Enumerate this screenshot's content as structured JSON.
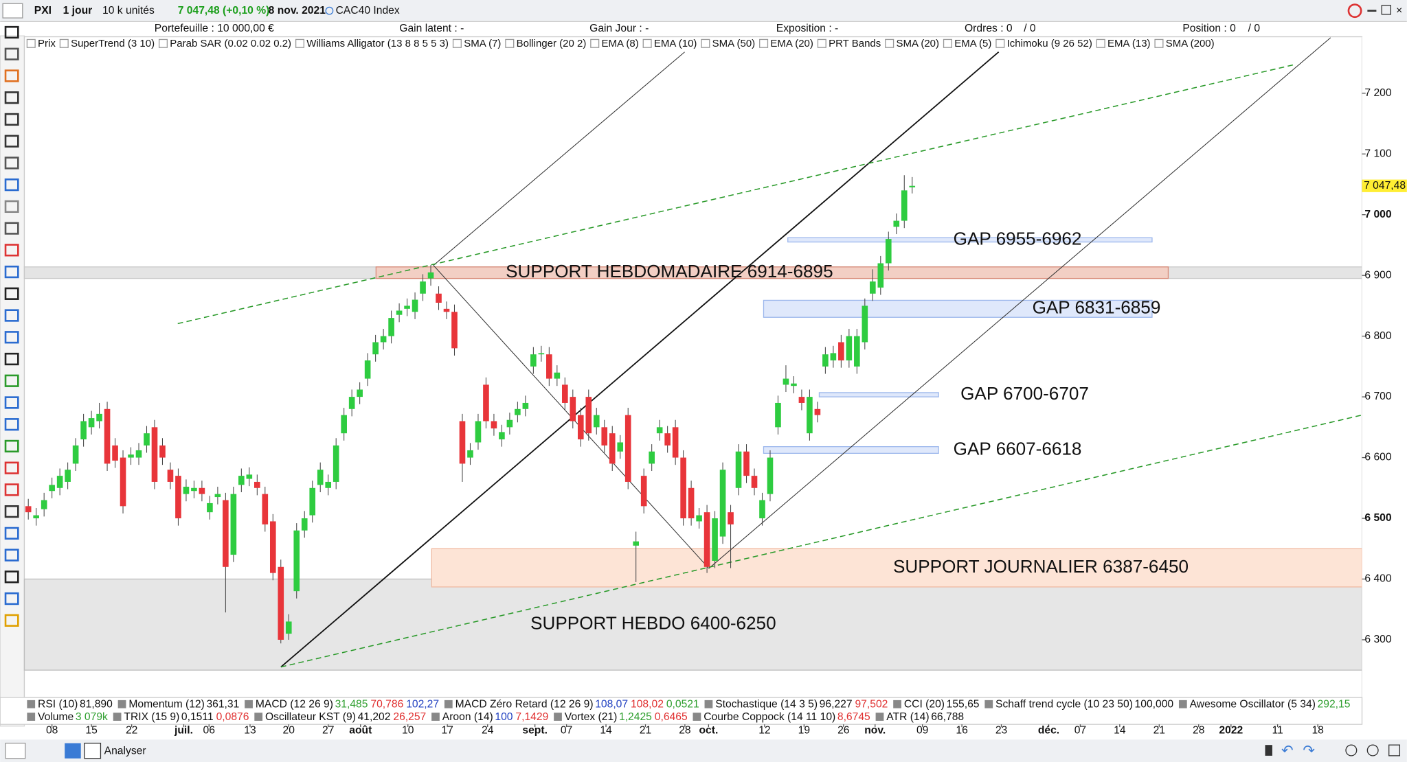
{
  "toolbar": {
    "symbol": "PXI",
    "period": "1 jour",
    "units": "10 k unités",
    "quote": "7 047,48 (+0,10 %)",
    "date": "8 nov. 2021",
    "instrument": "CAC40 Index"
  },
  "header": {
    "portfolio": "Portefeuille : 10 000,00 €",
    "unrealized": "Gain latent : -",
    "day_gain": "Gain Jour : -",
    "exposure": "Exposition : -",
    "orders": "Ordres : 0",
    "orders_2": "/ 0",
    "position": "Position : 0",
    "position_2": "/ 0"
  },
  "overlays": [
    "Prix",
    "SuperTrend (3 10)",
    "Parab SAR (0.02 0.02 0.2)",
    "Williams Alligator (13 8 8 5 5 3)",
    "SMA (7)",
    "Bollinger (20 2)",
    "EMA (8)",
    "EMA (10)",
    "SMA (50)",
    "EMA (20)",
    "PRT Bands",
    "SMA (20)",
    "EMA (5)",
    "Ichimoku (9 26 52)",
    "EMA (13)",
    "SMA (200)"
  ],
  "chart_data": {
    "type": "candlestick",
    "up_color": "#2ecc40",
    "down_color": "#e8353a",
    "open": [
      6520,
      6500,
      6515,
      6545,
      6550,
      6560,
      6590,
      6630,
      6650,
      6660,
      6680,
      6620,
      6600,
      6600,
      6600,
      6620,
      6650,
      6620,
      6580,
      6570,
      6540,
      6545,
      6550,
      6510,
      6535,
      6530,
      6440,
      6555,
      6565,
      6560,
      6540,
      6495,
      6420,
      6310,
      6380,
      6480,
      6505,
      6555,
      6550,
      6560,
      6640,
      6680,
      6700,
      6730,
      6770,
      6790,
      6800,
      6835,
      6845,
      6840,
      6870,
      6895,
      6870,
      6845,
      6840,
      6660,
      6600,
      6625,
      6720,
      6660,
      6630,
      6650,
      6670,
      6680,
      6750,
      6770,
      6770,
      6730,
      6720,
      6700,
      6670,
      6700,
      6650,
      6650,
      6640,
      6610,
      6670,
      6455,
      6570,
      6590,
      6640,
      6640,
      6650,
      6600,
      6550,
      6495,
      6510,
      6430,
      6470,
      6510,
      6550,
      6610,
      6570,
      6500,
      6540,
      6650,
      6720,
      6718,
      6700,
      6640,
      6680,
      6750,
      6760,
      6790,
      6760,
      6750,
      6790,
      6870,
      6880,
      6920,
      6980,
      6990,
      7045
    ],
    "high": [
      6532,
      6517,
      6542,
      6567,
      6582,
      6592,
      6632,
      6672,
      6677,
      6690,
      6692,
      6632,
      6612,
      6617,
      6624,
      6652,
      6662,
      6632,
      6592,
      6582,
      6564,
      6562,
      6562,
      6537,
      6552,
      6542,
      6552,
      6582,
      6584,
      6572,
      6552,
      6507,
      6432,
      6342,
      6492,
      6512,
      6562,
      6592,
      6572,
      6632,
      6682,
      6712,
      6724,
      6772,
      6802,
      6812,
      6842,
      6854,
      6862,
      6872,
      6902,
      6917,
      6882,
      6857,
      6852,
      6672,
      6624,
      6672,
      6732,
      6672,
      6654,
      6674,
      6692,
      6702,
      6782,
      6784,
      6782,
      6752,
      6732,
      6712,
      6682,
      6712,
      6682,
      6662,
      6652,
      6637,
      6682,
      6478,
      6582,
      6622,
      6662,
      6652,
      6662,
      6612,
      6562,
      6517,
      6522,
      6512,
      6592,
      6522,
      6622,
      6622,
      6582,
      6542,
      6612,
      6702,
      6752,
      6734,
      6712,
      6712,
      6692,
      6782,
      6784,
      6802,
      6812,
      6812,
      6862,
      6910,
      6932,
      6972,
      7002,
      7065,
      7062
    ],
    "low": [
      6498,
      6488,
      6503,
      6533,
      6538,
      6548,
      6578,
      6618,
      6638,
      6648,
      6578,
      6583,
      6508,
      6588,
      6588,
      6608,
      6548,
      6588,
      6548,
      6488,
      6528,
      6533,
      6528,
      6498,
      6523,
      6345,
      6428,
      6543,
      6553,
      6538,
      6478,
      6398,
      6294,
      6300,
      6368,
      6468,
      6493,
      6543,
      6538,
      6548,
      6628,
      6668,
      6688,
      6718,
      6758,
      6778,
      6788,
      6823,
      6833,
      6828,
      6858,
      6883,
      6843,
      6828,
      6768,
      6560,
      6588,
      6613,
      6648,
      6636,
      6618,
      6638,
      6658,
      6668,
      6738,
      6758,
      6718,
      6718,
      6678,
      6648,
      6618,
      6628,
      6638,
      6608,
      6578,
      6598,
      6548,
      6395,
      6508,
      6578,
      6628,
      6608,
      6588,
      6488,
      6488,
      6483,
      6410,
      6418,
      6458,
      6418,
      6538,
      6558,
      6538,
      6488,
      6528,
      6638,
      6708,
      6706,
      6678,
      6628,
      6658,
      6738,
      6748,
      6748,
      6748,
      6738,
      6778,
      6858,
      6868,
      6908,
      6968,
      6978,
      7035
    ],
    "close": [
      6510,
      6505,
      6530,
      6555,
      6570,
      6580,
      6620,
      6660,
      6665,
      6672,
      6590,
      6595,
      6520,
      6605,
      6612,
      6640,
      6560,
      6600,
      6560,
      6500,
      6552,
      6550,
      6540,
      6525,
      6540,
      6420,
      6540,
      6570,
      6572,
      6550,
      6490,
      6410,
      6300,
      6330,
      6480,
      6500,
      6550,
      6580,
      6560,
      6620,
      6670,
      6700,
      6712,
      6760,
      6790,
      6800,
      6830,
      6842,
      6850,
      6860,
      6890,
      6905,
      6855,
      6840,
      6780,
      6590,
      6612,
      6660,
      6660,
      6648,
      6642,
      6662,
      6680,
      6690,
      6770,
      6772,
      6730,
      6740,
      6690,
      6660,
      6630,
      6640,
      6670,
      6620,
      6590,
      6625,
      6560,
      6462,
      6520,
      6610,
      6650,
      6620,
      6600,
      6500,
      6500,
      6505,
      6420,
      6500,
      6580,
      6490,
      6610,
      6570,
      6550,
      6530,
      6600,
      6690,
      6730,
      6722,
      6690,
      6700,
      6670,
      6770,
      6772,
      6760,
      6800,
      6800,
      6850,
      6890,
      6920,
      6960,
      6990,
      7040,
      7047.48
    ],
    "xlim": [
      -0.5,
      169
    ],
    "xticks": [
      {
        "value": 3,
        "label": "08"
      },
      {
        "value": 8,
        "label": "15"
      },
      {
        "value": 13.1,
        "label": "22"
      },
      {
        "value": 19.7,
        "label": "juil."
      },
      {
        "value": 22.9,
        "label": "06"
      },
      {
        "value": 28.1,
        "label": "13"
      },
      {
        "value": 33,
        "label": "20"
      },
      {
        "value": 38,
        "label": "27"
      },
      {
        "value": 42.1,
        "label": "août"
      },
      {
        "value": 48.1,
        "label": "10"
      },
      {
        "value": 53.1,
        "label": "17"
      },
      {
        "value": 58.2,
        "label": "24"
      },
      {
        "value": 64.2,
        "label": "sept."
      },
      {
        "value": 68.2,
        "label": "07"
      },
      {
        "value": 73.2,
        "label": "14"
      },
      {
        "value": 78.2,
        "label": "21"
      },
      {
        "value": 83.2,
        "label": "28"
      },
      {
        "value": 86.2,
        "label": "oct."
      },
      {
        "value": 93.3,
        "label": "12"
      },
      {
        "value": 98.3,
        "label": "19"
      },
      {
        "value": 103.3,
        "label": "26"
      },
      {
        "value": 107.3,
        "label": "nov."
      },
      {
        "value": 113.3,
        "label": "09"
      },
      {
        "value": 118.3,
        "label": "16"
      },
      {
        "value": 123.3,
        "label": "23"
      },
      {
        "value": 129.3,
        "label": "déc."
      },
      {
        "value": 133.3,
        "label": "07"
      },
      {
        "value": 138.3,
        "label": "14"
      },
      {
        "value": 143.3,
        "label": "21"
      },
      {
        "value": 148.3,
        "label": "28"
      },
      {
        "value": 152.4,
        "label": "2022"
      },
      {
        "value": 158.3,
        "label": "11"
      },
      {
        "value": 163.4,
        "label": "18"
      }
    ],
    "ylim": [
      6205,
      7293
    ],
    "yticks": [
      {
        "value": 7200,
        "label": "7 200"
      },
      {
        "value": 7100,
        "label": "7 100"
      },
      {
        "value": 7000,
        "label": "7 000"
      },
      {
        "value": 6900,
        "label": "6 900"
      },
      {
        "value": 6800,
        "label": "6 800"
      },
      {
        "value": 6700,
        "label": "6 700"
      },
      {
        "value": 6600,
        "label": "6 600"
      },
      {
        "value": 6500,
        "label": "6 500"
      },
      {
        "value": 6400,
        "label": "6 400"
      },
      {
        "value": 6300,
        "label": "6 300"
      }
    ],
    "last_price": {
      "value": 7047.48,
      "label": "7 047,48"
    },
    "annotations": [
      {
        "label": "SUPPORT HEBDO 6400-6250",
        "low": 6250,
        "high": 6400,
        "fill": "#e6e6e6",
        "stroke": "#bdbdbd"
      },
      {
        "label": "SUPPORT JOURNALIER 6387-6450",
        "low": 6387,
        "high": 6450,
        "fill": "#fde4d6",
        "stroke": "#f0b9a0"
      },
      {
        "label": "SUPPORT HEBDOMADAIRE 6914-6895",
        "low": 6895,
        "high": 6914,
        "fill": "#f2cfc4",
        "stroke": "#d98a78"
      },
      {
        "label": "GAP 6955-6962",
        "low": 6955,
        "high": 6962,
        "fill": "#dfe8fb",
        "stroke": "#9cb7ec"
      },
      {
        "label": "GAP 6831-6859",
        "low": 6831,
        "high": 6859,
        "fill": "#dfe8fb",
        "stroke": "#9cb7ec"
      },
      {
        "label": "GAP 6700-6707",
        "low": 6700,
        "high": 6707,
        "fill": "#dfe8fb",
        "stroke": "#9cb7ec"
      },
      {
        "label": "GAP 6607-6618",
        "low": 6607,
        "high": 6618,
        "fill": "#dfe8fb",
        "stroke": "#9cb7ec"
      }
    ]
  },
  "lower_indicators": [
    [
      {
        "name": "RSI (10)",
        "values": [
          {
            "text": "81,890",
            "color": "#111111"
          }
        ]
      },
      {
        "name": "Momentum (12)",
        "values": [
          {
            "text": "361,31",
            "color": "#111111"
          }
        ]
      },
      {
        "name": "MACD (12 26 9)",
        "values": [
          {
            "text": "31,485",
            "color": "#2e9e2e"
          },
          {
            "text": "70,786",
            "color": "#e03030"
          },
          {
            "text": "102,27",
            "color": "#2040c0"
          }
        ]
      },
      {
        "name": "MACD Zéro Retard (12 26 9)",
        "values": [
          {
            "text": "108,07",
            "color": "#2040c0"
          },
          {
            "text": "108,02",
            "color": "#e03030"
          },
          {
            "text": "0,0521",
            "color": "#2e9e2e"
          }
        ]
      },
      {
        "name": "Stochastique (14 3 5)",
        "values": [
          {
            "text": "96,227",
            "color": "#111111"
          },
          {
            "text": "97,502",
            "color": "#e03030"
          }
        ]
      },
      {
        "name": "CCI (20)",
        "values": [
          {
            "text": "155,65",
            "color": "#111111"
          }
        ]
      },
      {
        "name": "Schaff trend cycle (10 23 50)",
        "values": [
          {
            "text": "100,000",
            "color": "#111111"
          }
        ]
      },
      {
        "name": "Awesome Oscillator (5 34)",
        "values": [
          {
            "text": "292,15",
            "color": "#2e9e2e"
          }
        ]
      }
    ],
    [
      {
        "name": "Volume",
        "values": [
          {
            "text": "3 079k",
            "color": "#2e9e2e"
          }
        ]
      },
      {
        "name": "TRIX (15 9)",
        "values": [
          {
            "text": "0,1511",
            "color": "#111111"
          },
          {
            "text": "0,0876",
            "color": "#e03030"
          }
        ]
      },
      {
        "name": "Oscillateur KST (9)",
        "values": [
          {
            "text": "41,202",
            "color": "#111111"
          },
          {
            "text": "26,257",
            "color": "#e03030"
          }
        ]
      },
      {
        "name": "Aroon (14)",
        "values": [
          {
            "text": "100",
            "color": "#2040c0"
          },
          {
            "text": "7,1429",
            "color": "#e03030"
          }
        ]
      },
      {
        "name": "Vortex (21)",
        "values": [
          {
            "text": "1,2425",
            "color": "#2e9e2e"
          },
          {
            "text": "0,6465",
            "color": "#e03030"
          }
        ]
      },
      {
        "name": "Courbe Coppock (14 11 10)",
        "values": [
          {
            "text": "8,6745",
            "color": "#e03030"
          }
        ]
      },
      {
        "name": "ATR (14)",
        "values": [
          {
            "text": "66,788",
            "color": "#111111"
          }
        ]
      }
    ]
  ],
  "bottom_toolbar": {
    "analyze": "Analyser"
  }
}
